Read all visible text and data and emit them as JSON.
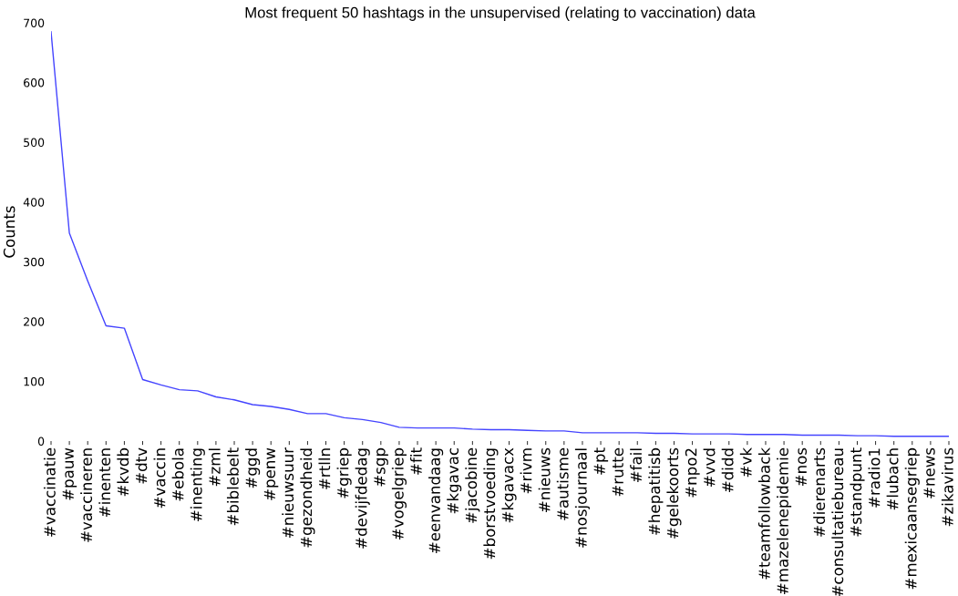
{
  "chart_data": {
    "type": "line",
    "title": "Most frequent 50 hashtags in the unsupervised (relating to vaccination) data",
    "ylabel": "Counts",
    "categories": [
      "#vaccinatie",
      "#pauw",
      "#vaccineren",
      "#inenten",
      "#kvdb",
      "#dtv",
      "#vaccin",
      "#ebola",
      "#inenting",
      "#zml",
      "#biblebelt",
      "#ggd",
      "#penw",
      "#nieuwsuur",
      "#gezondheid",
      "#rtlln",
      "#griep",
      "#devijfdedag",
      "#sgp",
      "#vogelgriep",
      "#fit",
      "#eenvandaag",
      "#kgavac",
      "#jacobine",
      "#borstvoeding",
      "#kgavacx",
      "#rivm",
      "#nieuws",
      "#autisme",
      "#nosjournaal",
      "#pt",
      "#rutte",
      "#fail",
      "#hepatitisb",
      "#gelekoorts",
      "#npo2",
      "#vvd",
      "#didd",
      "#vk",
      "#teamfollowback",
      "#mazelenepidemie",
      "#nos",
      "#dierenarts",
      "#consultatiebureau",
      "#standpunt",
      "#radio1",
      "#lubach",
      "#mexicaansegriep",
      "#news",
      "#zikavirus"
    ],
    "series": [
      {
        "color": "#4444ff",
        "values": [
          685,
          348,
          268,
          193,
          189,
          103,
          94,
          86,
          84,
          74,
          69,
          61,
          58,
          53,
          46,
          46,
          39,
          36,
          31,
          23,
          22,
          22,
          22,
          20,
          19,
          19,
          18,
          17,
          17,
          14,
          14,
          14,
          14,
          13,
          13,
          12,
          12,
          12,
          11,
          11,
          11,
          10,
          10,
          10,
          9,
          9,
          8,
          8,
          8,
          8
        ]
      }
    ],
    "ylim": [
      0,
      700
    ],
    "yticks": [
      0,
      100,
      200,
      300,
      400,
      500,
      600,
      700
    ],
    "grid": false,
    "legend": false,
    "marker": "none",
    "line_style": "solid"
  }
}
